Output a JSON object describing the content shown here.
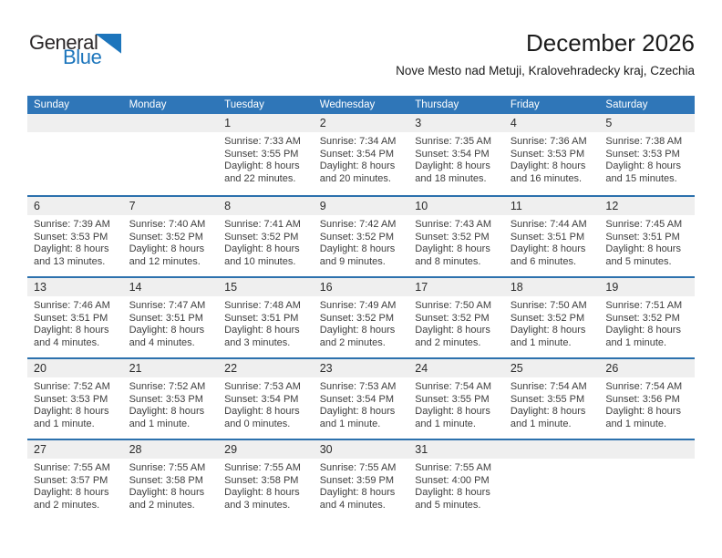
{
  "logo": {
    "line1": "General",
    "line2": "Blue",
    "triangle_icon": "blue-right-triangle"
  },
  "header": {
    "title": "December 2026",
    "subtitle": "Nove Mesto nad Metuji, Kralovehradecky kraj, Czechia"
  },
  "colors": {
    "header_bg": "#2F76B8",
    "row_divider": "#2C71AD",
    "band_bg": "#EFEFEF",
    "logo_blue": "#1C75BC"
  },
  "calendar": {
    "weekdays": [
      "Sunday",
      "Monday",
      "Tuesday",
      "Wednesday",
      "Thursday",
      "Friday",
      "Saturday"
    ],
    "weeks": [
      {
        "days": [
          null,
          null,
          {
            "num": "1",
            "sunrise": "Sunrise: 7:33 AM",
            "sunset": "Sunset: 3:55 PM",
            "daylight": "Daylight: 8 hours and 22 minutes."
          },
          {
            "num": "2",
            "sunrise": "Sunrise: 7:34 AM",
            "sunset": "Sunset: 3:54 PM",
            "daylight": "Daylight: 8 hours and 20 minutes."
          },
          {
            "num": "3",
            "sunrise": "Sunrise: 7:35 AM",
            "sunset": "Sunset: 3:54 PM",
            "daylight": "Daylight: 8 hours and 18 minutes."
          },
          {
            "num": "4",
            "sunrise": "Sunrise: 7:36 AM",
            "sunset": "Sunset: 3:53 PM",
            "daylight": "Daylight: 8 hours and 16 minutes."
          },
          {
            "num": "5",
            "sunrise": "Sunrise: 7:38 AM",
            "sunset": "Sunset: 3:53 PM",
            "daylight": "Daylight: 8 hours and 15 minutes."
          }
        ]
      },
      {
        "days": [
          {
            "num": "6",
            "sunrise": "Sunrise: 7:39 AM",
            "sunset": "Sunset: 3:53 PM",
            "daylight": "Daylight: 8 hours and 13 minutes."
          },
          {
            "num": "7",
            "sunrise": "Sunrise: 7:40 AM",
            "sunset": "Sunset: 3:52 PM",
            "daylight": "Daylight: 8 hours and 12 minutes."
          },
          {
            "num": "8",
            "sunrise": "Sunrise: 7:41 AM",
            "sunset": "Sunset: 3:52 PM",
            "daylight": "Daylight: 8 hours and 10 minutes."
          },
          {
            "num": "9",
            "sunrise": "Sunrise: 7:42 AM",
            "sunset": "Sunset: 3:52 PM",
            "daylight": "Daylight: 8 hours and 9 minutes."
          },
          {
            "num": "10",
            "sunrise": "Sunrise: 7:43 AM",
            "sunset": "Sunset: 3:52 PM",
            "daylight": "Daylight: 8 hours and 8 minutes."
          },
          {
            "num": "11",
            "sunrise": "Sunrise: 7:44 AM",
            "sunset": "Sunset: 3:51 PM",
            "daylight": "Daylight: 8 hours and 6 minutes."
          },
          {
            "num": "12",
            "sunrise": "Sunrise: 7:45 AM",
            "sunset": "Sunset: 3:51 PM",
            "daylight": "Daylight: 8 hours and 5 minutes."
          }
        ]
      },
      {
        "days": [
          {
            "num": "13",
            "sunrise": "Sunrise: 7:46 AM",
            "sunset": "Sunset: 3:51 PM",
            "daylight": "Daylight: 8 hours and 4 minutes."
          },
          {
            "num": "14",
            "sunrise": "Sunrise: 7:47 AM",
            "sunset": "Sunset: 3:51 PM",
            "daylight": "Daylight: 8 hours and 4 minutes."
          },
          {
            "num": "15",
            "sunrise": "Sunrise: 7:48 AM",
            "sunset": "Sunset: 3:51 PM",
            "daylight": "Daylight: 8 hours and 3 minutes."
          },
          {
            "num": "16",
            "sunrise": "Sunrise: 7:49 AM",
            "sunset": "Sunset: 3:52 PM",
            "daylight": "Daylight: 8 hours and 2 minutes."
          },
          {
            "num": "17",
            "sunrise": "Sunrise: 7:50 AM",
            "sunset": "Sunset: 3:52 PM",
            "daylight": "Daylight: 8 hours and 2 minutes."
          },
          {
            "num": "18",
            "sunrise": "Sunrise: 7:50 AM",
            "sunset": "Sunset: 3:52 PM",
            "daylight": "Daylight: 8 hours and 1 minute."
          },
          {
            "num": "19",
            "sunrise": "Sunrise: 7:51 AM",
            "sunset": "Sunset: 3:52 PM",
            "daylight": "Daylight: 8 hours and 1 minute."
          }
        ]
      },
      {
        "days": [
          {
            "num": "20",
            "sunrise": "Sunrise: 7:52 AM",
            "sunset": "Sunset: 3:53 PM",
            "daylight": "Daylight: 8 hours and 1 minute."
          },
          {
            "num": "21",
            "sunrise": "Sunrise: 7:52 AM",
            "sunset": "Sunset: 3:53 PM",
            "daylight": "Daylight: 8 hours and 1 minute."
          },
          {
            "num": "22",
            "sunrise": "Sunrise: 7:53 AM",
            "sunset": "Sunset: 3:54 PM",
            "daylight": "Daylight: 8 hours and 0 minutes."
          },
          {
            "num": "23",
            "sunrise": "Sunrise: 7:53 AM",
            "sunset": "Sunset: 3:54 PM",
            "daylight": "Daylight: 8 hours and 1 minute."
          },
          {
            "num": "24",
            "sunrise": "Sunrise: 7:54 AM",
            "sunset": "Sunset: 3:55 PM",
            "daylight": "Daylight: 8 hours and 1 minute."
          },
          {
            "num": "25",
            "sunrise": "Sunrise: 7:54 AM",
            "sunset": "Sunset: 3:55 PM",
            "daylight": "Daylight: 8 hours and 1 minute."
          },
          {
            "num": "26",
            "sunrise": "Sunrise: 7:54 AM",
            "sunset": "Sunset: 3:56 PM",
            "daylight": "Daylight: 8 hours and 1 minute."
          }
        ]
      },
      {
        "days": [
          {
            "num": "27",
            "sunrise": "Sunrise: 7:55 AM",
            "sunset": "Sunset: 3:57 PM",
            "daylight": "Daylight: 8 hours and 2 minutes."
          },
          {
            "num": "28",
            "sunrise": "Sunrise: 7:55 AM",
            "sunset": "Sunset: 3:58 PM",
            "daylight": "Daylight: 8 hours and 2 minutes."
          },
          {
            "num": "29",
            "sunrise": "Sunrise: 7:55 AM",
            "sunset": "Sunset: 3:58 PM",
            "daylight": "Daylight: 8 hours and 3 minutes."
          },
          {
            "num": "30",
            "sunrise": "Sunrise: 7:55 AM",
            "sunset": "Sunset: 3:59 PM",
            "daylight": "Daylight: 8 hours and 4 minutes."
          },
          {
            "num": "31",
            "sunrise": "Sunrise: 7:55 AM",
            "sunset": "Sunset: 4:00 PM",
            "daylight": "Daylight: 8 hours and 5 minutes."
          },
          null,
          null
        ]
      }
    ]
  }
}
